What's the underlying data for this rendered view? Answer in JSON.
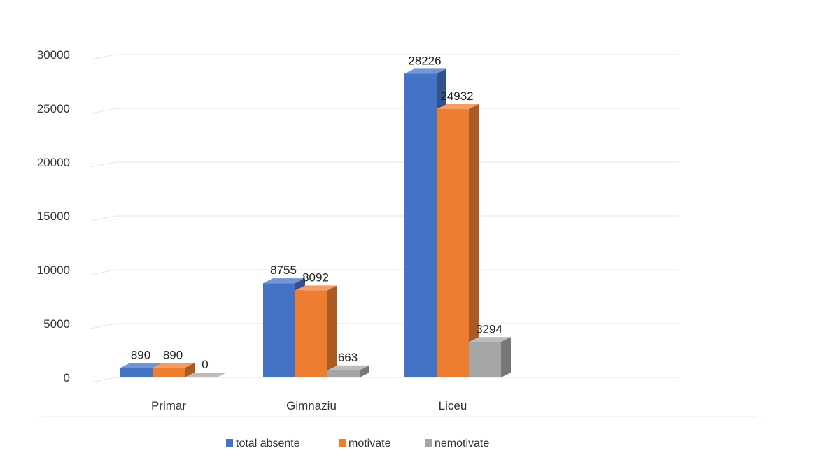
{
  "chart_data": {
    "type": "bar",
    "title": "",
    "xlabel": "",
    "ylabel": "",
    "categories": [
      "Primar",
      "Gimnaziu",
      "Liceu"
    ],
    "series": [
      {
        "name": "total absente",
        "values": [
          890,
          8755,
          28226
        ],
        "color": "#4472c4"
      },
      {
        "name": "motivate",
        "values": [
          890,
          8092,
          24932
        ],
        "color": "#ed7d31"
      },
      {
        "name": "nemotivate",
        "values": [
          0,
          663,
          3294
        ],
        "color": "#a5a5a5"
      }
    ],
    "ylim": [
      0,
      30000
    ],
    "yticks": [
      0,
      5000,
      10000,
      15000,
      20000,
      25000,
      30000
    ],
    "grid": true,
    "legend_position": "bottom",
    "style": "3d-clustered-column"
  }
}
